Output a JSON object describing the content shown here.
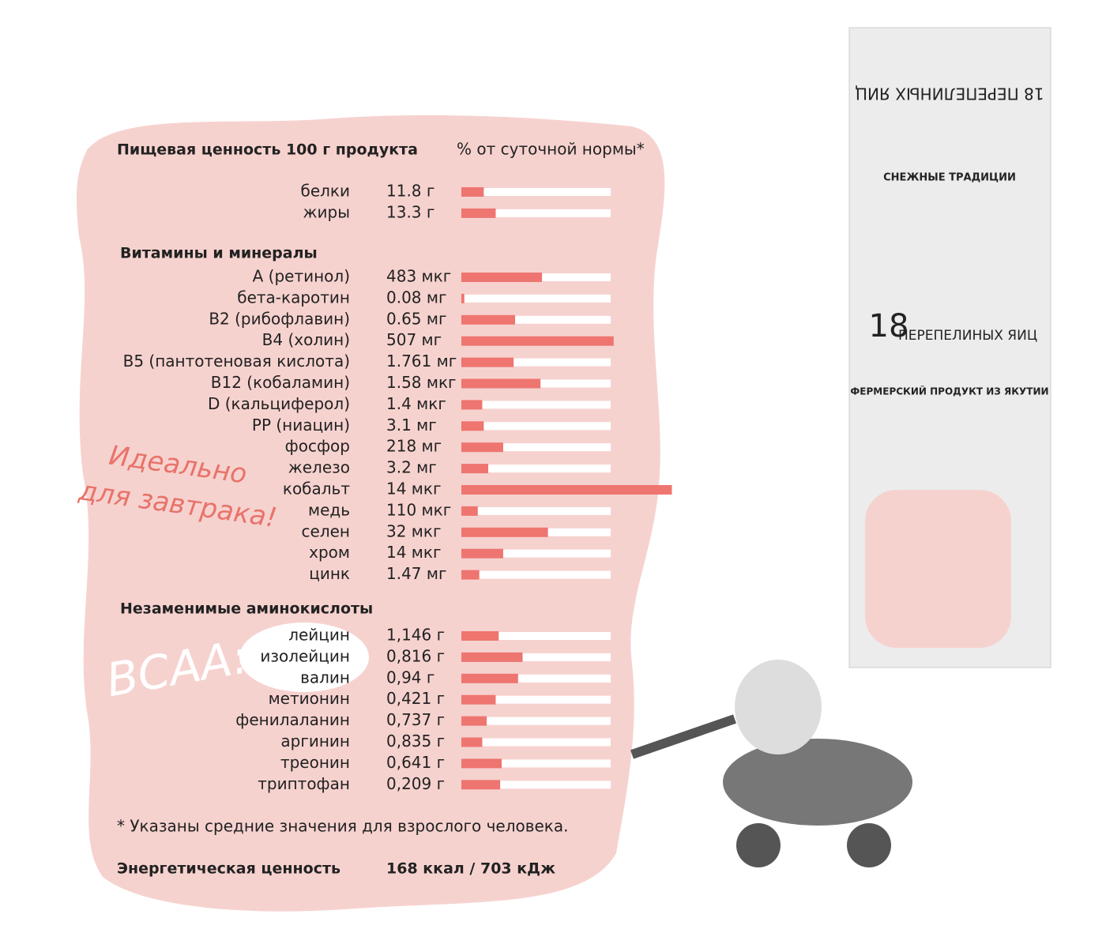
{
  "header": {
    "title": "Пищевая ценность 100 г продукта",
    "subtitle": "% от суточной нормы*"
  },
  "sections": [
    {
      "rows": [
        {
          "label": "белки",
          "amount": "11.8 г",
          "percent": 15
        },
        {
          "label": "жиры",
          "amount": "13.3 г",
          "percent": 23
        }
      ]
    },
    {
      "title": "Витамины и минералы",
      "rows": [
        {
          "label": "А (ретинол)",
          "amount": "483 мкг",
          "percent": 54
        },
        {
          "label": "бета-каротин",
          "amount": "0.08 мг",
          "percent": 2
        },
        {
          "label": "B2 (рибофлавин)",
          "amount": "0.65 мг",
          "percent": 36
        },
        {
          "label": "B4 (холин)",
          "amount": "507 мг",
          "percent": 102
        },
        {
          "label": "B5 (пантотеновая кислота)",
          "amount": "1.761 мг",
          "percent": 35
        },
        {
          "label": "B12 (кобаламин)",
          "amount": "1.58 мкг",
          "percent": 53
        },
        {
          "label": "D (кальциферол)",
          "amount": "1.4 мкг",
          "percent": 14
        },
        {
          "label": "PP (ниацин)",
          "amount": "3.1 мг",
          "percent": 15
        },
        {
          "label": "фосфор",
          "amount": "218 мг",
          "percent": 28
        },
        {
          "label": "железо",
          "amount": "3.2 мг",
          "percent": 18
        },
        {
          "label": "кобальт",
          "amount": "14 мкг",
          "percent": 141
        },
        {
          "label": "медь",
          "amount": "110 мкг",
          "percent": 11
        },
        {
          "label": "селен",
          "amount": "32 мкг",
          "percent": 58
        },
        {
          "label": "хром",
          "amount": "14 мкг",
          "percent": 28
        },
        {
          "label": "цинк",
          "amount": "1.47 мг",
          "percent": 12
        }
      ]
    },
    {
      "title": "Незаменимые аминокислоты",
      "rows": [
        {
          "label": "лейцин",
          "amount": "1,146 г",
          "percent": 25
        },
        {
          "label": "изолейцин",
          "amount": "0,816 г",
          "percent": 41
        },
        {
          "label": "валин",
          "amount": "0,94 г",
          "percent": 38
        },
        {
          "label": "метионин",
          "amount": "0,421 г",
          "percent": 23
        },
        {
          "label": "фенилаланин",
          "amount": "0,737 г",
          "percent": 17
        },
        {
          "label": "аргинин",
          "amount": "0,835 г",
          "percent": 14
        },
        {
          "label": "треонин",
          "amount": "0,641 г",
          "percent": 27
        },
        {
          "label": "триптофан",
          "amount": "0,209 г",
          "percent": 26
        }
      ]
    }
  ],
  "footnote": "* Указаны средние значения для взрослого человека.",
  "energy": {
    "label": "Энергетическая ценность",
    "value": "168 ккал / 703 кДж"
  },
  "decor": {
    "breakfast_1": "Идеально",
    "breakfast_2": "для завтрака!",
    "bcaa": "BCAA:"
  },
  "package": {
    "brand": "СНЕЖНЫЕ ТРАДИЦИИ",
    "count": "18",
    "name": "ПЕРЕПЕЛИНЫХ ЯИЦ",
    "tagline": "ФЕРМЕРСКИЙ ПРОДУКТ ИЗ ЯКУТИИ",
    "top": "18 ПЕРЕПЕЛИНЫХ ЯИЦ"
  }
}
